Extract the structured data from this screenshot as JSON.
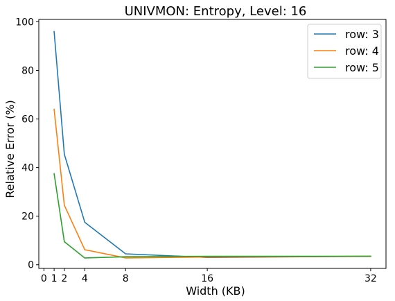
{
  "chart_data": {
    "type": "line",
    "title": "UNIVMON: Entropy, Level: 16",
    "xlabel": "Width (KB)",
    "ylabel": "Relative Error (%)",
    "x": [
      1,
      2,
      4,
      8,
      16,
      32
    ],
    "xticks": [
      0,
      1,
      2,
      4,
      8,
      16,
      32
    ],
    "xtick_labels": [
      "0",
      "1",
      "2",
      "4",
      "8",
      "16",
      "32"
    ],
    "yticks": [
      0,
      20,
      40,
      60,
      80,
      100
    ],
    "ytick_labels": [
      "0",
      "20",
      "40",
      "60",
      "80",
      "100"
    ],
    "xlim": [
      -0.5,
      33.5
    ],
    "ylim": [
      -1.5,
      101
    ],
    "grid": false,
    "legend_position": "top-right",
    "series": [
      {
        "name": "row: 3",
        "color": "#1f77b4",
        "values": [
          96,
          45.5,
          17.5,
          4.5,
          3.0,
          3.5
        ]
      },
      {
        "name": "row: 4",
        "color": "#ff7f0e",
        "values": [
          64,
          24.5,
          6.2,
          2.8,
          3.2,
          3.5
        ]
      },
      {
        "name": "row: 5",
        "color": "#2ca02c",
        "values": [
          37.5,
          9.5,
          2.8,
          3.3,
          3.5,
          3.5
        ]
      }
    ]
  }
}
